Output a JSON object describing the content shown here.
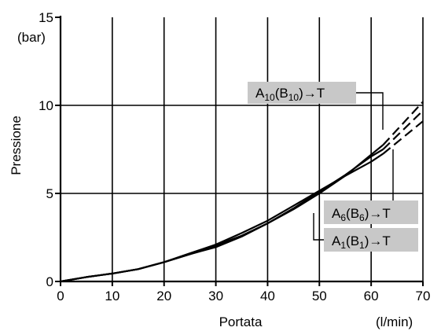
{
  "chart_data": {
    "type": "line",
    "xlabel": "Portata",
    "xunit": "(l/min)",
    "ylabel": "Pressione",
    "yunit": "(bar)",
    "xlim": [
      0,
      70
    ],
    "ylim": [
      0,
      15
    ],
    "xticks": [
      0,
      10,
      20,
      30,
      40,
      50,
      60,
      70
    ],
    "yticks": [
      0,
      5,
      10,
      15
    ],
    "grid": true,
    "series": [
      {
        "name": "A10(B10)→T",
        "name_main": "A",
        "name_sub1": "10",
        "name_mid": "(B",
        "name_sub2": "10",
        "name_end": ")→T",
        "values": [
          [
            0,
            0
          ],
          [
            5,
            0.25
          ],
          [
            10,
            0.45
          ],
          [
            15,
            0.7
          ],
          [
            20,
            1.1
          ],
          [
            25,
            1.55
          ],
          [
            30,
            2.05
          ],
          [
            35,
            2.6
          ],
          [
            40,
            3.3
          ],
          [
            45,
            4.1
          ],
          [
            50,
            5.0
          ],
          [
            55,
            6.0
          ],
          [
            60,
            7.2
          ],
          [
            62.3,
            7.75
          ]
        ],
        "extrapolated": [
          [
            62.3,
            7.75
          ],
          [
            70,
            10.2
          ]
        ]
      },
      {
        "name": "A6(B6)→T",
        "name_main": "A",
        "name_sub1": "6",
        "name_mid": "(B",
        "name_sub2": "6",
        "name_end": ")→T",
        "values": [
          [
            0,
            0
          ],
          [
            5,
            0.25
          ],
          [
            10,
            0.45
          ],
          [
            15,
            0.7
          ],
          [
            20,
            1.1
          ],
          [
            25,
            1.55
          ],
          [
            30,
            1.95
          ],
          [
            35,
            2.55
          ],
          [
            40,
            3.3
          ],
          [
            45,
            4.15
          ],
          [
            50,
            5.1
          ],
          [
            55,
            6.05
          ],
          [
            60,
            7.1
          ],
          [
            62.3,
            7.5
          ]
        ],
        "extrapolated": [
          [
            62.3,
            7.5
          ],
          [
            70,
            9.7
          ]
        ]
      },
      {
        "name": "A1(B1)→T",
        "name_main": "A",
        "name_sub1": "1",
        "name_mid": "(B",
        "name_sub2": "1",
        "name_end": ")→T",
        "values": [
          [
            0,
            0
          ],
          [
            5,
            0.25
          ],
          [
            10,
            0.45
          ],
          [
            15,
            0.7
          ],
          [
            20,
            1.1
          ],
          [
            25,
            1.6
          ],
          [
            30,
            2.1
          ],
          [
            35,
            2.75
          ],
          [
            40,
            3.45
          ],
          [
            45,
            4.3
          ],
          [
            50,
            5.15
          ],
          [
            55,
            6.0
          ],
          [
            60,
            6.8
          ],
          [
            62.3,
            7.25
          ]
        ],
        "extrapolated": [
          [
            62.3,
            7.25
          ],
          [
            70,
            9.1
          ]
        ]
      }
    ]
  }
}
